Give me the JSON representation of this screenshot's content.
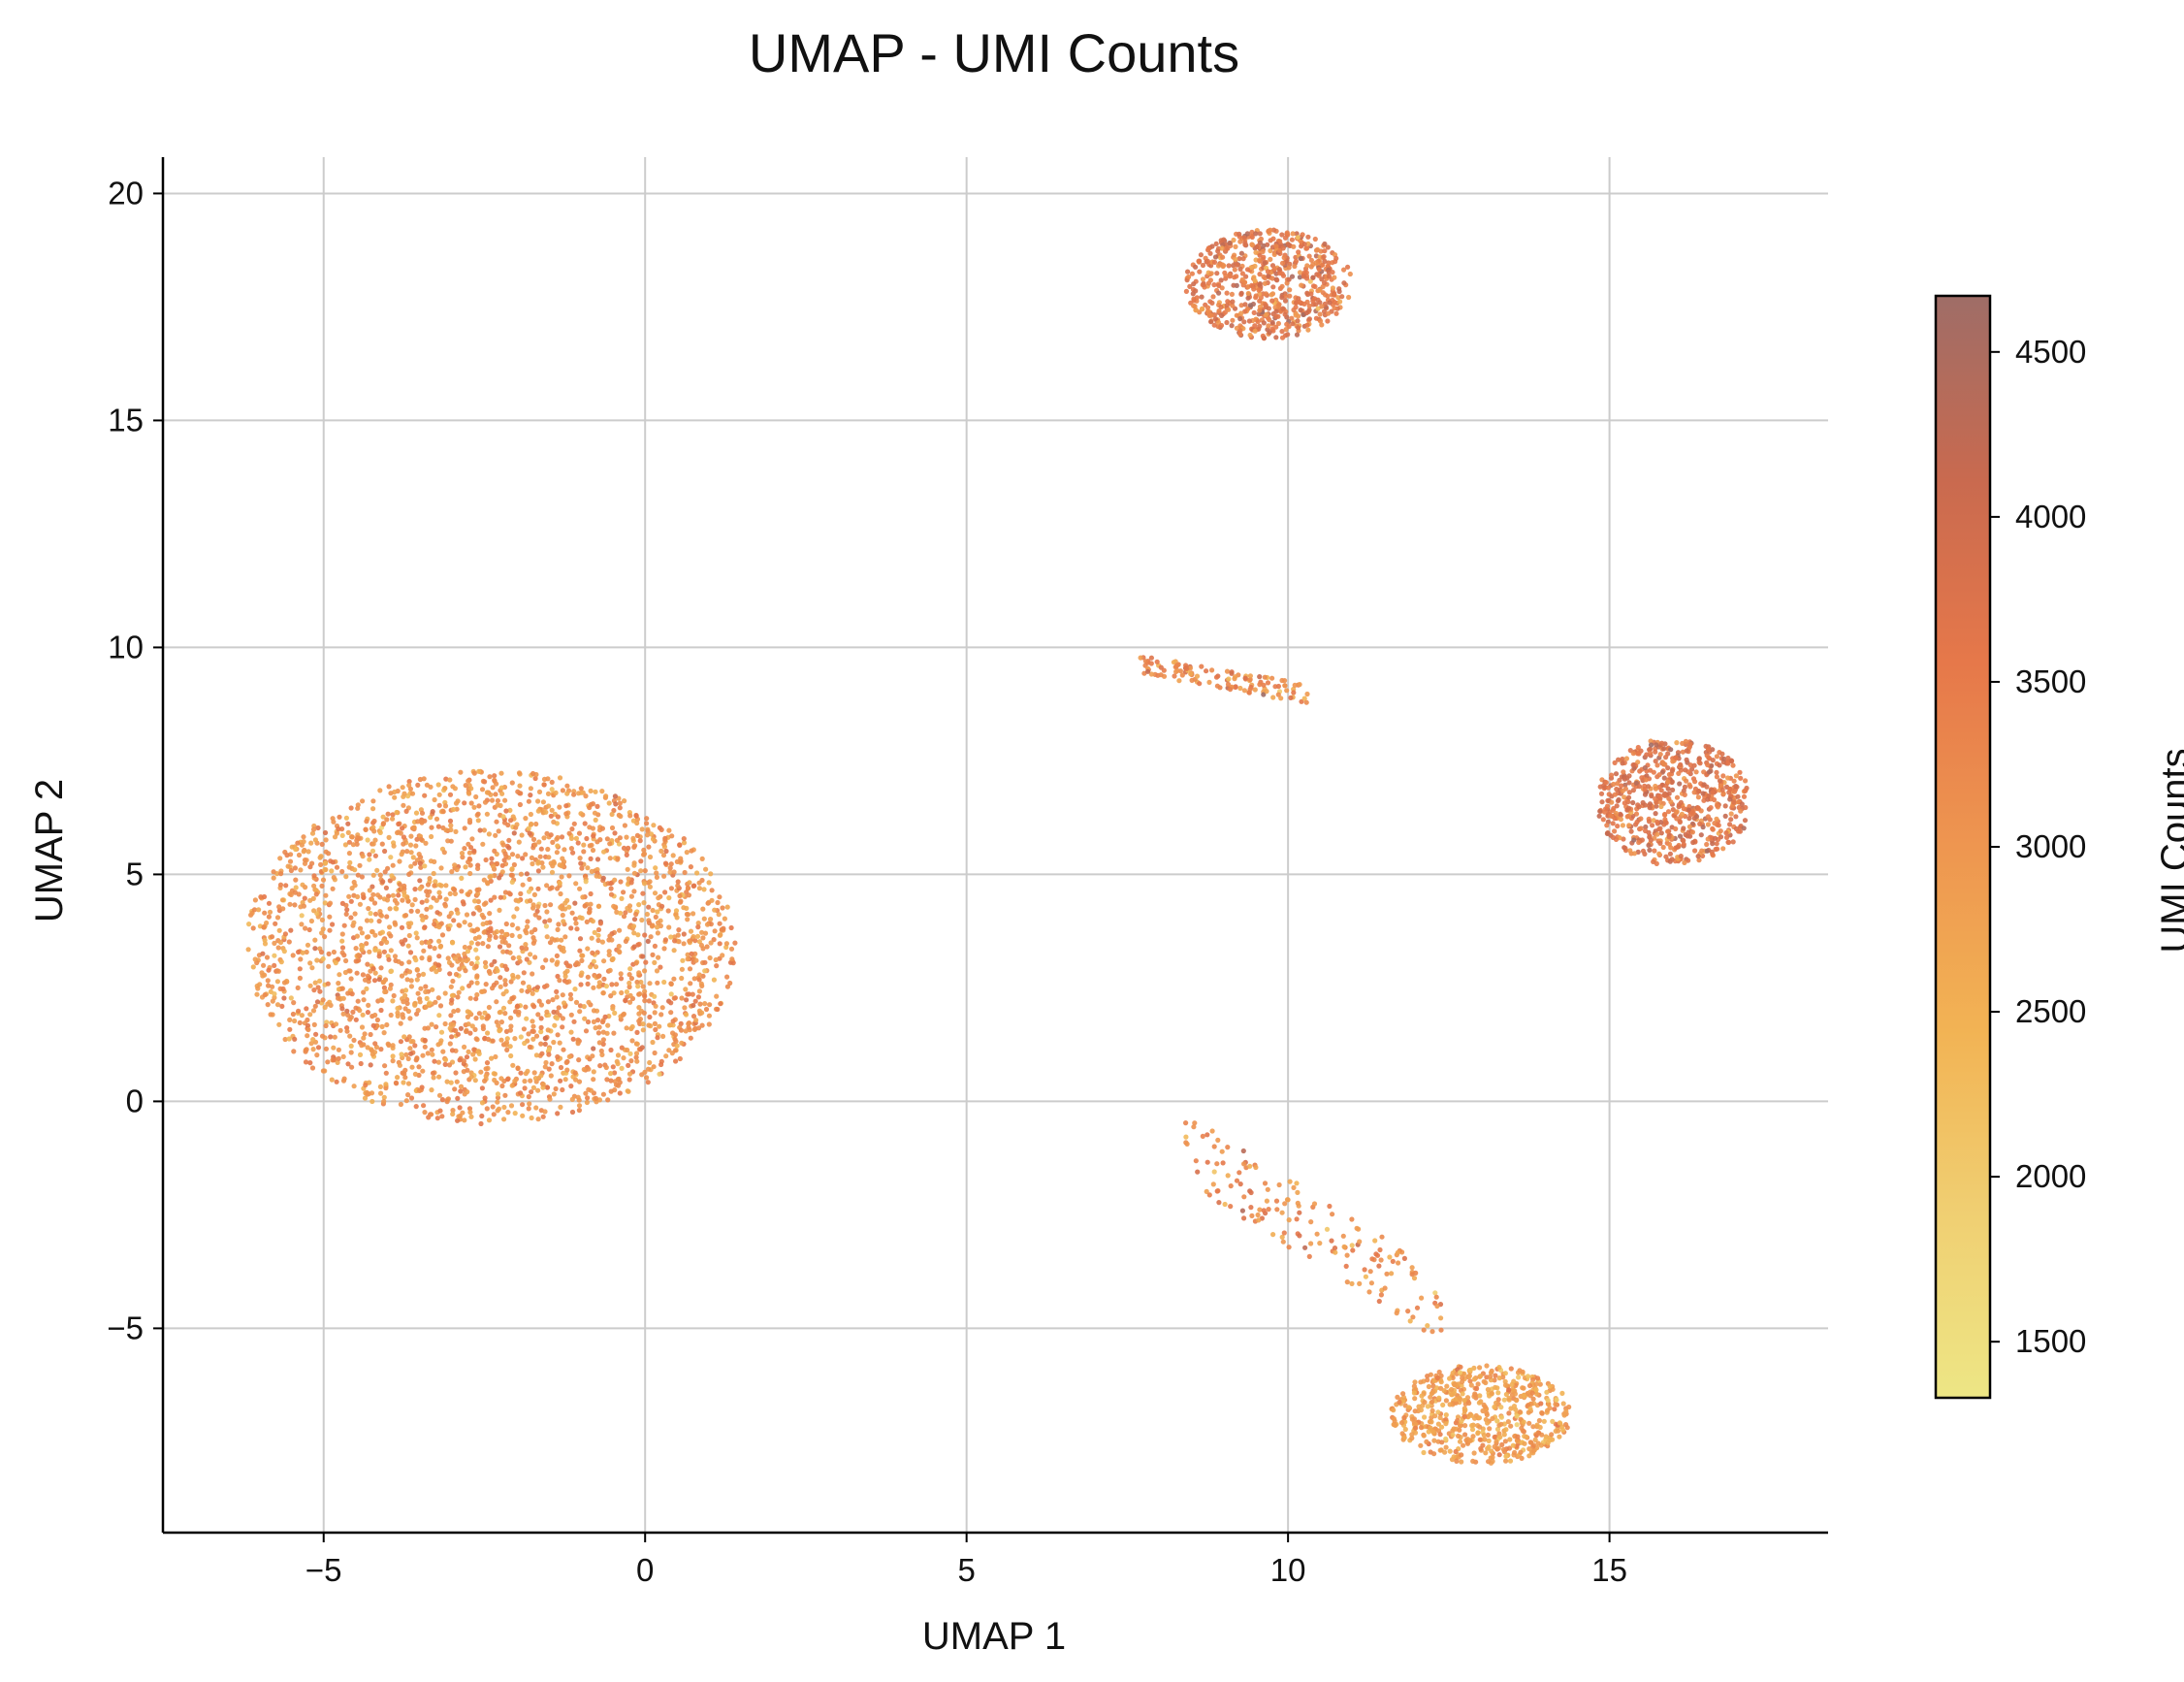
{
  "chart_data": {
    "type": "scatter",
    "title": "UMAP - UMI Counts",
    "xlabel": "UMAP 1",
    "ylabel": "UMAP 2",
    "xlim": [
      -7.5,
      18.4
    ],
    "ylim": [
      -9.5,
      20.8
    ],
    "x_ticks": [
      -5,
      0,
      5,
      10,
      15
    ],
    "x_tick_labels": [
      "−5",
      "0",
      "5",
      "10",
      "15"
    ],
    "y_ticks": [
      -5,
      0,
      5,
      10,
      15,
      20
    ],
    "y_tick_labels": [
      "−5",
      "0",
      "5",
      "10",
      "15",
      "20"
    ],
    "grid": true,
    "colorbar": {
      "label": "UMI Counts",
      "range": [
        1330,
        4670
      ],
      "ticks": [
        1500,
        2000,
        2500,
        3000,
        3500,
        4000,
        4500
      ],
      "tick_labels": [
        "1500",
        "2000",
        "2500",
        "3000",
        "3500",
        "4000",
        "4500"
      ],
      "colormap": [
        "#ede685",
        "#f0cf72",
        "#f2b354",
        "#ee9650",
        "#e6784a",
        "#c96a4f",
        "#9f6d67"
      ]
    },
    "clusters": [
      {
        "center": [
          -2.4,
          3.4
        ],
        "extent": [
          3.8,
          3.9
        ],
        "umi_mean": 3050,
        "umi_sd": 350
      },
      {
        "center": [
          9.7,
          18.0
        ],
        "extent": [
          1.3,
          1.2
        ],
        "umi_mean": 3550,
        "umi_sd": 400
      },
      {
        "center": [
          16.0,
          6.6
        ],
        "extent": [
          1.2,
          1.4
        ],
        "umi_mean": 3650,
        "umi_sd": 380
      },
      {
        "center": [
          13.0,
          -6.9
        ],
        "extent": [
          1.4,
          1.1
        ],
        "umi_mean": 2850,
        "umi_sd": 320
      },
      {
        "center": [
          9.0,
          9.3
        ],
        "extent": [
          1.3,
          0.6
        ],
        "umi_mean": 3200,
        "umi_sd": 450
      },
      {
        "center": [
          10.4,
          -2.8
        ],
        "extent": [
          2.0,
          2.2
        ],
        "umi_mean": 3150,
        "umi_sd": 450
      }
    ]
  }
}
